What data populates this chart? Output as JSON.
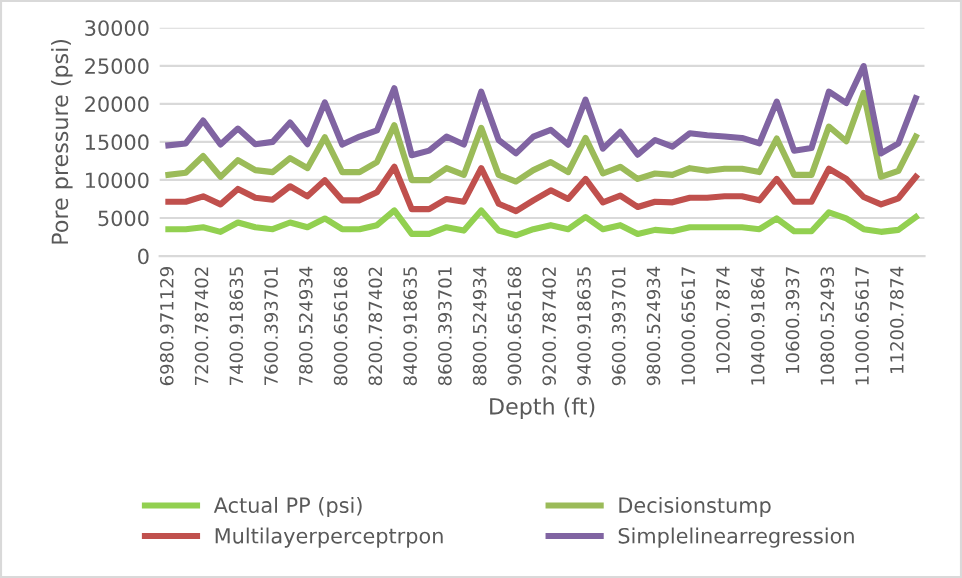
{
  "chart_data": {
    "type": "line",
    "xlabel": "Depth (ft)",
    "ylabel": "Pore pressure (psi)",
    "categories": [
      "6980.971129",
      null,
      "7200.787402",
      null,
      "7400.918635",
      null,
      "7600.393701",
      null,
      "7800.524934",
      null,
      "8000.656168",
      null,
      "8200.787402",
      null,
      "8400.918635",
      null,
      "8600.393701",
      null,
      "8800.524934",
      null,
      "9000.656168",
      null,
      "9200.787402",
      null,
      "9400.918635",
      null,
      "9600.393701",
      null,
      "9800.524934",
      null,
      "10000.65617",
      null,
      "10200.7874",
      null,
      "10400.91864",
      null,
      "10600.3937",
      null,
      "10800.52493",
      null,
      "11000.65617",
      null,
      "11200.7874",
      null
    ],
    "series": [
      {
        "name": "Actual PP (psi)",
        "color": "#92d050",
        "values": [
          3530,
          3530,
          3790,
          3180,
          4410,
          3790,
          3530,
          4410,
          3790,
          4940,
          3530,
          3530,
          4060,
          6000,
          2910,
          2910,
          3790,
          3350,
          6000,
          3350,
          2730,
          3530,
          4060,
          3530,
          5120,
          3530,
          4060,
          2910,
          3440,
          3260,
          3790,
          3790,
          3790,
          3790,
          3530,
          4940,
          3260,
          3260,
          5730,
          4940,
          3530,
          3180,
          3440,
          5120
        ]
      },
      {
        "name": "Multilayerperceptrpon",
        "color": "#c0504d",
        "values": [
          7140,
          7140,
          7850,
          6790,
          8820,
          7670,
          7410,
          9170,
          7850,
          9970,
          7320,
          7320,
          8380,
          11730,
          6170,
          6170,
          7500,
          7140,
          11550,
          6880,
          5910,
          7320,
          8640,
          7500,
          10140,
          7060,
          7940,
          6440,
          7140,
          7060,
          7670,
          7670,
          7850,
          7850,
          7320,
          10140,
          7140,
          7140,
          11470,
          10140,
          7760,
          6790,
          7590,
          10410
        ]
      },
      {
        "name": "Decisionstump",
        "color": "#9bbb59",
        "values": [
          10670,
          10940,
          13140,
          10410,
          12610,
          11290,
          11030,
          12880,
          11550,
          15610,
          11030,
          11030,
          12350,
          17200,
          9970,
          9970,
          11550,
          10670,
          16850,
          10670,
          9790,
          11290,
          12350,
          11030,
          15520,
          10850,
          11730,
          10140,
          10850,
          10670,
          11550,
          11200,
          11470,
          11470,
          11030,
          15440,
          10670,
          10670,
          17020,
          15080,
          21430,
          10410,
          11200,
          15700
        ]
      },
      {
        "name": "Simplelinearregression",
        "color": "#8064a2",
        "values": [
          14550,
          14800,
          17800,
          14650,
          16750,
          14700,
          15000,
          17550,
          14700,
          20200,
          14650,
          15700,
          16500,
          22050,
          13250,
          13850,
          15700,
          14650,
          21600,
          15250,
          13490,
          15700,
          16580,
          14640,
          20550,
          14110,
          16320,
          13320,
          15250,
          14380,
          16140,
          15880,
          15700,
          15520,
          14820,
          20290,
          13850,
          14200,
          21610,
          20110,
          24960,
          13490,
          14820,
          20730
        ]
      }
    ],
    "ylim": [
      0,
      30000
    ],
    "yticks": [
      0,
      5000,
      10000,
      15000,
      20000,
      25000,
      30000
    ],
    "grid": "y",
    "legend": "bottom",
    "marker": "none",
    "line_style": "solid"
  }
}
